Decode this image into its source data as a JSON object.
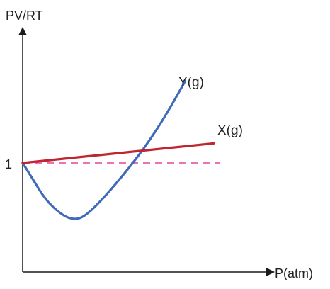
{
  "chart_data": {
    "type": "line",
    "title": "",
    "xlabel": "P(atm)",
    "ylabel": "PV/RT",
    "y_reference_value": 1,
    "y_tick_labels": [
      "1"
    ],
    "grid": false,
    "axes": {
      "x_arrow": true,
      "y_arrow": true
    },
    "reference_line": {
      "y": 1,
      "style": "dashed",
      "color": "#e0479e"
    },
    "series": [
      {
        "name": "X(g)",
        "color": "#c0262f",
        "points": [
          {
            "x": 0,
            "y": 1.0
          },
          {
            "x": 10,
            "y": 1.18
          }
        ]
      },
      {
        "name": "Y(g)",
        "color": "#3f6ab8",
        "points": [
          {
            "x": 0,
            "y": 1.0
          },
          {
            "x": 0.5,
            "y": 0.86
          },
          {
            "x": 1.2,
            "y": 0.66
          },
          {
            "x": 2.0,
            "y": 0.53
          },
          {
            "x": 2.6,
            "y": 0.48
          },
          {
            "x": 3.2,
            "y": 0.5
          },
          {
            "x": 4.2,
            "y": 0.67
          },
          {
            "x": 5.5,
            "y": 0.94
          },
          {
            "x": 6.5,
            "y": 1.17
          },
          {
            "x": 7.5,
            "y": 1.44
          },
          {
            "x": 8.5,
            "y": 1.75
          }
        ]
      }
    ]
  }
}
